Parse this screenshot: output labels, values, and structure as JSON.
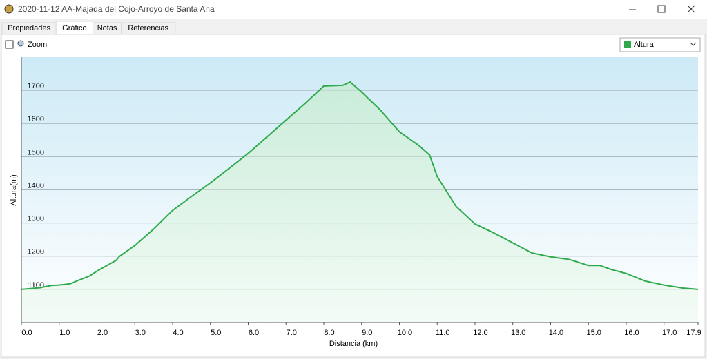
{
  "window": {
    "title": "2020-11-12 AA-Majada del Cojo-Arroyo de Santa Ana",
    "tabs": [
      "Propiedades",
      "Gráfico",
      "Notas",
      "Referencias"
    ],
    "active_tab": 1,
    "zoom_label": "Zoom",
    "dropdown": "Altura"
  },
  "chart_data": {
    "type": "area",
    "x_label": "Distancia  (km)",
    "y_label": "Altura(m)",
    "x": [
      0,
      0.5,
      0.8,
      1.0,
      1.3,
      1.5,
      1.8,
      2.0,
      2.5,
      2.6,
      3.0,
      3.5,
      4.0,
      4.5,
      5.0,
      5.5,
      6.0,
      6.5,
      7.0,
      7.5,
      8.0,
      8.5,
      8.7,
      9.0,
      9.5,
      10.0,
      10.5,
      10.8,
      11.0,
      11.5,
      12.0,
      12.5,
      13.0,
      13.5,
      14.0,
      14.5,
      15.0,
      15.3,
      15.6,
      16.0,
      16.5,
      17.0,
      17.5,
      17.9
    ],
    "series": [
      {
        "name": "Altura",
        "color": "#2eaa4a",
        "values": [
          1100,
          1105,
          1112,
          1113,
          1117,
          1127,
          1140,
          1155,
          1187,
          1200,
          1232,
          1282,
          1338,
          1380,
          1421,
          1465,
          1510,
          1560,
          1610,
          1660,
          1713,
          1715,
          1725,
          1695,
          1640,
          1575,
          1535,
          1505,
          1440,
          1350,
          1297,
          1270,
          1240,
          1210,
          1198,
          1190,
          1172,
          1172,
          1160,
          1148,
          1125,
          1113,
          1104,
          1100
        ]
      }
    ],
    "xlim": [
      0,
      17.9
    ],
    "ylim": [
      1000,
      1800
    ],
    "xticks": [
      {
        "value": 0,
        "label": "0.0"
      },
      {
        "value": 1,
        "label": "1.0"
      },
      {
        "value": 2,
        "label": "2.0"
      },
      {
        "value": 3,
        "label": "3.0"
      },
      {
        "value": 4,
        "label": "4.0"
      },
      {
        "value": 5,
        "label": "5.0"
      },
      {
        "value": 6,
        "label": "6.0"
      },
      {
        "value": 7,
        "label": "7.0"
      },
      {
        "value": 8,
        "label": "8.0"
      },
      {
        "value": 9,
        "label": "9.0"
      },
      {
        "value": 10,
        "label": "10.0"
      },
      {
        "value": 11,
        "label": "11.0"
      },
      {
        "value": 12,
        "label": "12.0"
      },
      {
        "value": 13,
        "label": "13.0"
      },
      {
        "value": 14,
        "label": "14.0"
      },
      {
        "value": 15,
        "label": "15.0"
      },
      {
        "value": 16,
        "label": "16.0"
      },
      {
        "value": 17,
        "label": "17.0"
      },
      17.9
    ],
    "yticks": [
      1100,
      1200,
      1300,
      1400,
      1500,
      1600,
      1700
    ],
    "grid": true
  }
}
